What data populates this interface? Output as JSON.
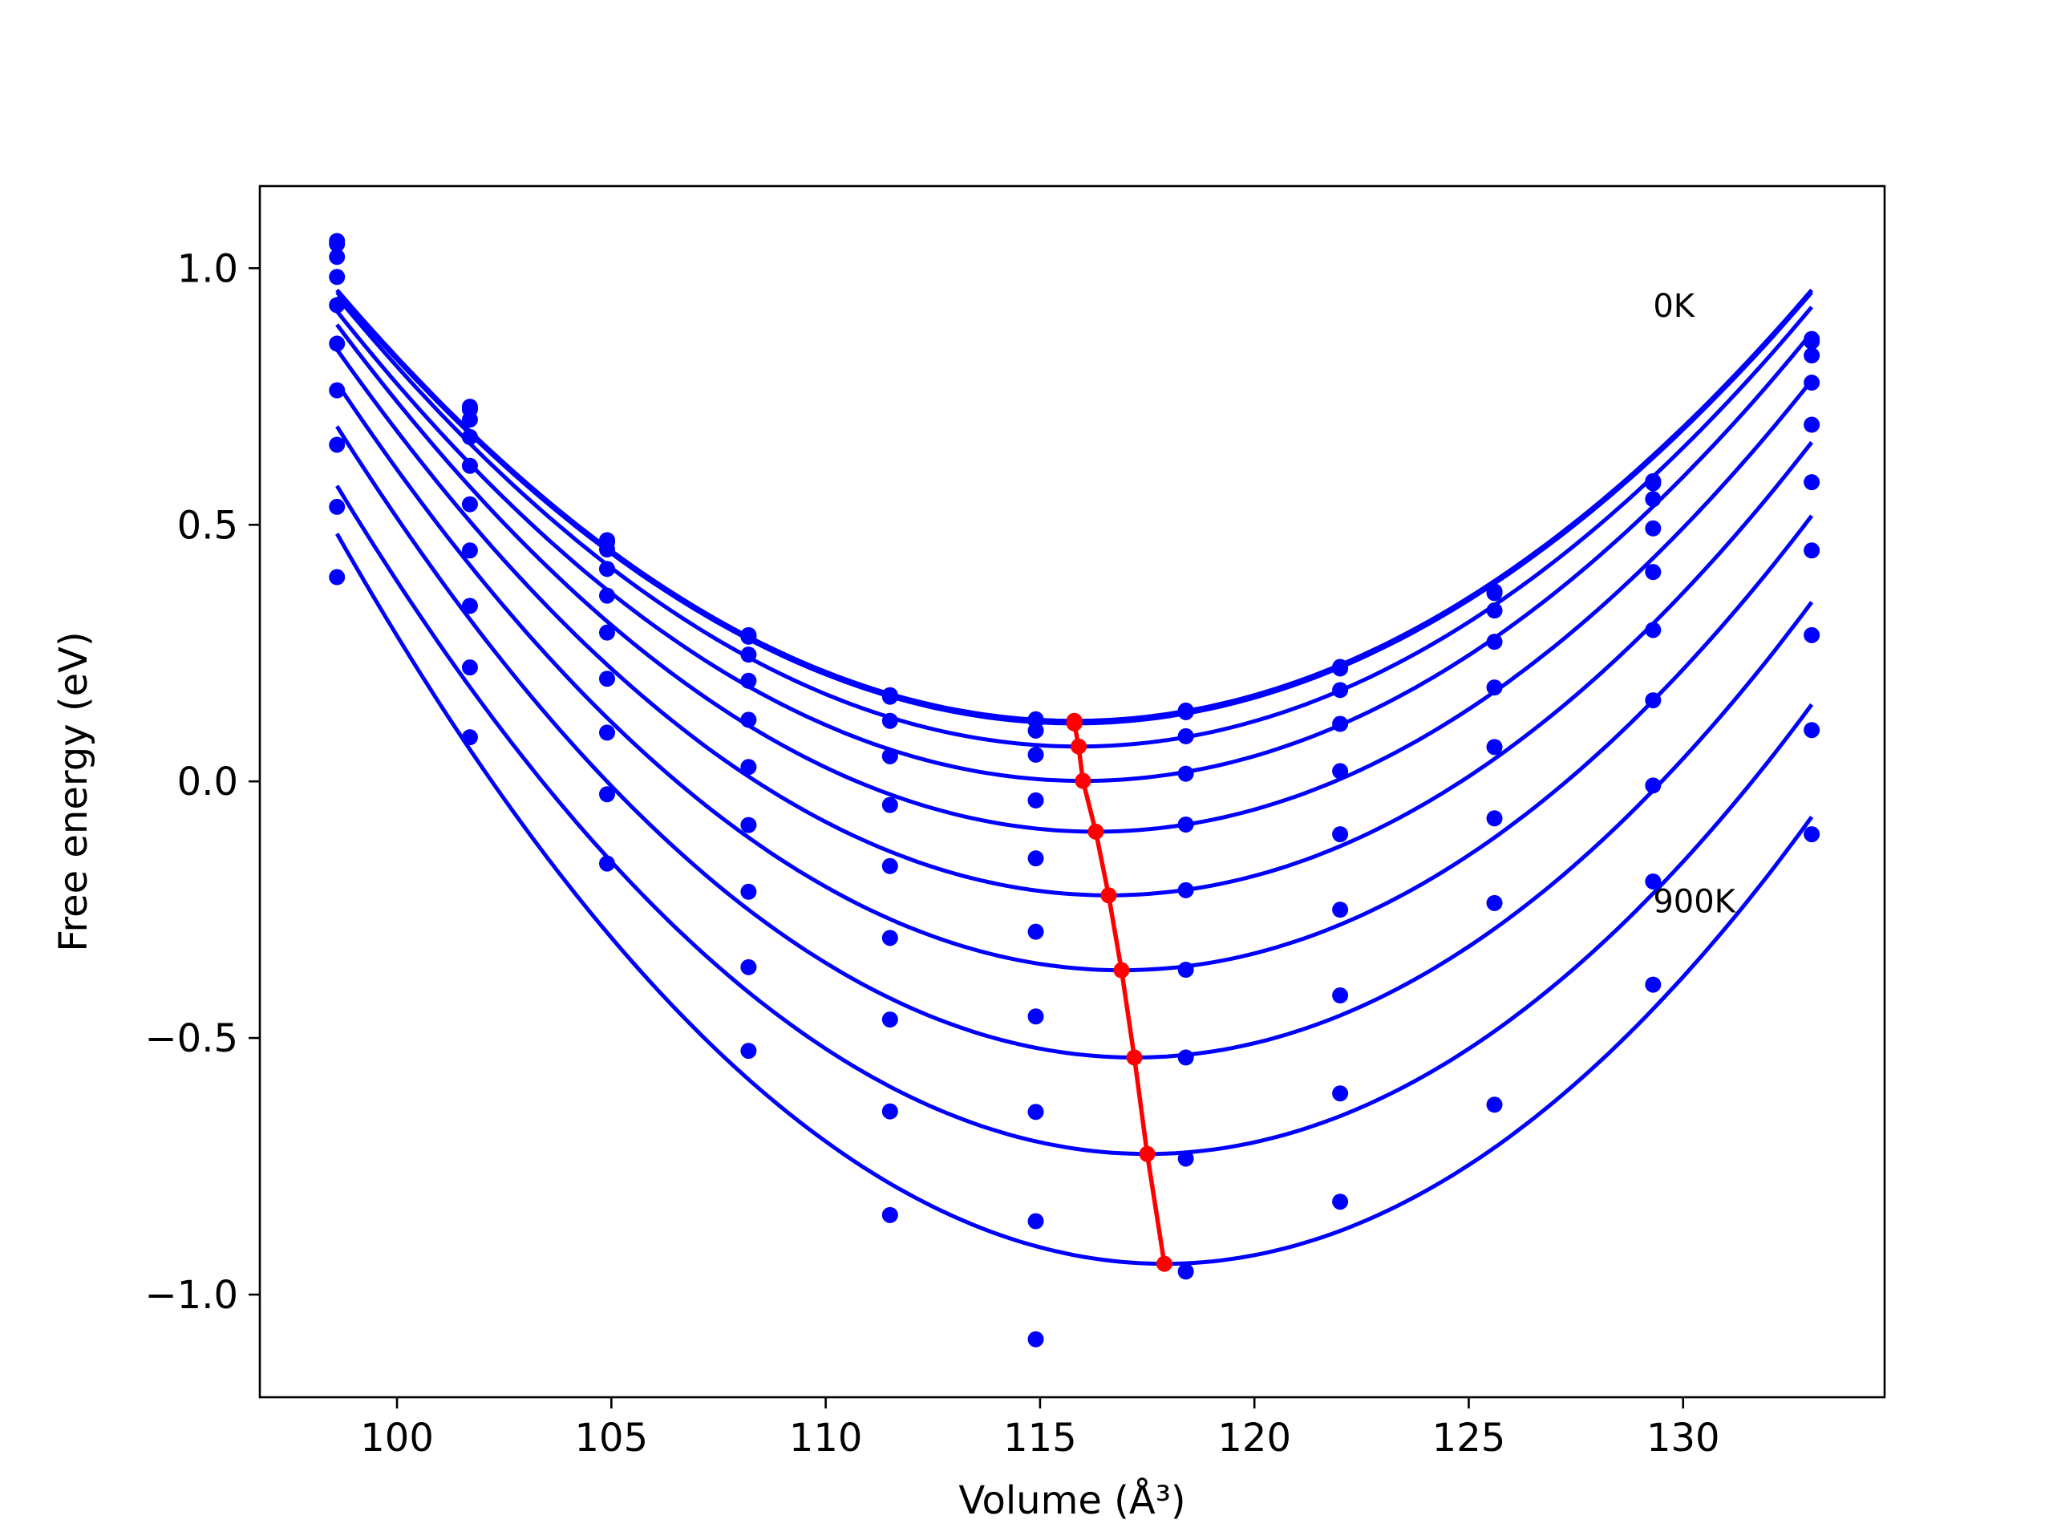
{
  "chart_data": {
    "type": "scatter",
    "xlabel": "Volume (Å³)",
    "ylabel": "Free energy (eV)",
    "xlim": [
      96.8,
      134.7
    ],
    "ylim": [
      -1.2,
      1.16
    ],
    "xticks": [
      100,
      105,
      110,
      115,
      120,
      125,
      130
    ],
    "yticks": [
      1.0,
      0.5,
      0.0,
      -0.5,
      -1.0
    ],
    "xtick_labels": [
      "100",
      "105",
      "110",
      "115",
      "120",
      "125",
      "130"
    ],
    "ytick_labels": [
      "1.0",
      "0.5",
      "0.0",
      "−0.5",
      "−1.0"
    ],
    "grid": false,
    "legend": "none",
    "annotations": [
      {
        "text": "0K",
        "x": 129.3,
        "y": 0.93
      },
      {
        "text": "900K",
        "x": 129.3,
        "y": -0.23
      }
    ],
    "colors": {
      "series": "#0000ff",
      "minimum_path": "#ff0000"
    },
    "volumes": [
      98.6,
      101.7,
      104.9,
      108.2,
      111.5,
      114.9,
      118.4,
      122.0,
      125.6,
      129.3,
      133.0
    ],
    "series": [
      {
        "points": [
          1.053,
          0.73,
          0.47,
          0.285,
          0.168,
          0.121,
          0.138,
          0.223,
          0.37,
          0.585,
          0.862
        ],
        "fit": {
          "v0": 115.8,
          "e0": 0.118,
          "xmin": 98.6,
          "xmax": 133.0
        }
      },
      {
        "points": [
          1.047,
          0.725,
          0.466,
          0.282,
          0.165,
          0.118,
          0.135,
          0.22,
          0.367,
          0.581,
          0.857
        ],
        "fit": {
          "v0": 115.8,
          "e0": 0.113,
          "xmin": 98.6,
          "xmax": 133.0
        }
      },
      {
        "points": [
          1.022,
          0.705,
          0.452,
          0.247,
          0.118,
          0.099,
          0.088,
          0.178,
          0.333,
          0.55,
          0.83
        ],
        "fit": {
          "v0": 115.9,
          "e0": 0.068,
          "xmin": 98.6,
          "xmax": 133.0
        }
      },
      {
        "points": [
          0.983,
          0.671,
          0.414,
          0.196,
          0.049,
          0.052,
          0.015,
          0.112,
          0.272,
          0.493,
          0.777
        ],
        "fit": {
          "v0": 116.0,
          "e0": 0.001,
          "xmin": 98.6,
          "xmax": 133.0
        }
      },
      {
        "points": [
          0.928,
          0.615,
          0.362,
          0.12,
          -0.046,
          -0.037,
          -0.084,
          0.02,
          0.183,
          0.408,
          0.695
        ],
        "fit": {
          "v0": 116.3,
          "e0": -0.098,
          "xmin": 98.6,
          "xmax": 133.0
        }
      },
      {
        "points": [
          0.853,
          0.54,
          0.29,
          0.028,
          -0.165,
          -0.15,
          -0.212,
          -0.103,
          0.067,
          0.295,
          0.583
        ],
        "fit": {
          "v0": 116.6,
          "e0": -0.222,
          "xmin": 98.6,
          "xmax": 133.0
        }
      },
      {
        "points": [
          0.762,
          0.45,
          0.2,
          -0.085,
          -0.305,
          -0.293,
          -0.367,
          -0.25,
          -0.072,
          0.158,
          0.45
        ],
        "fit": {
          "v0": 116.9,
          "e0": -0.368,
          "xmin": 98.6,
          "xmax": 133.0
        }
      },
      {
        "points": [
          0.656,
          0.342,
          0.095,
          -0.215,
          -0.464,
          -0.458,
          -0.538,
          -0.417,
          -0.237,
          -0.008,
          0.285
        ],
        "fit": {
          "v0": 117.2,
          "e0": -0.538,
          "xmin": 98.6,
          "xmax": 133.0
        }
      },
      {
        "points": [
          0.535,
          0.222,
          -0.025,
          -0.362,
          -0.643,
          -0.644,
          -0.735,
          -0.608,
          -0.63,
          -0.195,
          0.1
        ],
        "fit": {
          "v0": 117.5,
          "e0": -0.726,
          "xmin": 98.6,
          "xmax": 133.0
        }
      },
      {
        "points": [
          0.398,
          0.086,
          -0.16,
          -0.525,
          -0.845,
          -0.857,
          -0.955,
          -0.819,
          null,
          -0.396,
          -0.103
        ],
        "fit": {
          "v0": 117.9,
          "e0": -0.94,
          "xmin": 98.6,
          "xmax": 133.0
        }
      }
    ],
    "extra_points": [
      {
        "x": 114.9,
        "y": -1.087
      }
    ],
    "minimum_path": {
      "x": [
        115.8,
        115.8,
        115.9,
        116.0,
        116.3,
        116.6,
        116.9,
        117.2,
        117.5,
        117.9
      ],
      "y": [
        0.118,
        0.113,
        0.068,
        0.001,
        -0.098,
        -0.222,
        -0.368,
        -0.538,
        -0.726,
        -0.94
      ]
    }
  }
}
